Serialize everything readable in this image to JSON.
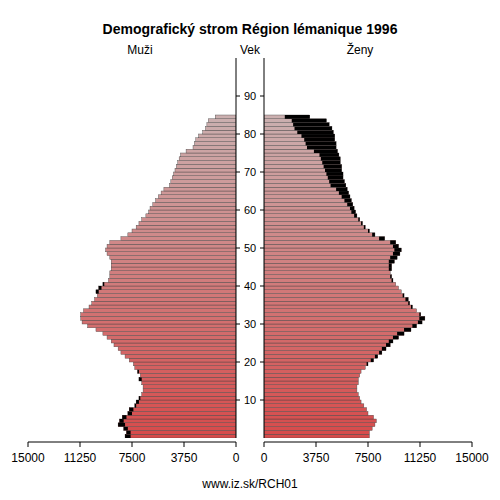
{
  "chart_data": {
    "type": "bar",
    "orientation": "horizontal",
    "title": "Demografický strom Région lémanique 1996",
    "y_label": "Vek",
    "footer": "www.iz.sk/RCH01",
    "categories": [
      0,
      1,
      2,
      3,
      4,
      5,
      6,
      7,
      8,
      9,
      10,
      11,
      12,
      13,
      14,
      15,
      16,
      17,
      18,
      19,
      20,
      21,
      22,
      23,
      24,
      25,
      26,
      27,
      28,
      29,
      30,
      31,
      32,
      33,
      34,
      35,
      36,
      37,
      38,
      39,
      40,
      41,
      42,
      43,
      44,
      45,
      46,
      47,
      48,
      49,
      50,
      51,
      52,
      53,
      54,
      55,
      56,
      57,
      58,
      59,
      60,
      61,
      62,
      63,
      64,
      65,
      66,
      67,
      68,
      69,
      70,
      71,
      72,
      73,
      74,
      75,
      76,
      77,
      78,
      79,
      80,
      81,
      82,
      83,
      84
    ],
    "series": [
      {
        "name": "Muži",
        "values": [
          8000,
          7900,
          8100,
          8500,
          8400,
          8200,
          7800,
          7700,
          7300,
          7200,
          7000,
          6800,
          6700,
          6700,
          6800,
          7000,
          6900,
          7100,
          7300,
          7400,
          7700,
          8000,
          8300,
          8500,
          8800,
          9000,
          9300,
          9600,
          10100,
          10700,
          11100,
          11200,
          11200,
          11000,
          10600,
          10400,
          10200,
          10000,
          10100,
          9900,
          9600,
          9200,
          9100,
          9100,
          9000,
          9000,
          9000,
          9100,
          9300,
          9400,
          9300,
          9100,
          8300,
          7800,
          7500,
          7200,
          7000,
          6800,
          6500,
          6300,
          6200,
          6000,
          5800,
          5600,
          5400,
          5200,
          4800,
          4700,
          4600,
          4500,
          4400,
          4300,
          4200,
          4100,
          4000,
          3600,
          3100,
          3000,
          2900,
          2700,
          2400,
          2200,
          2100,
          2000,
          1500
        ]
      },
      {
        "name": "Ženy",
        "values": [
          7600,
          7600,
          7800,
          8000,
          8100,
          7900,
          7500,
          7400,
          7200,
          7000,
          6900,
          6800,
          6700,
          6700,
          6800,
          6800,
          6900,
          7000,
          7300,
          7500,
          7900,
          8200,
          8500,
          8800,
          9100,
          9300,
          9700,
          10100,
          10600,
          11000,
          11400,
          11600,
          11300,
          11000,
          10700,
          10500,
          10400,
          10100,
          9900,
          9700,
          9500,
          9300,
          9200,
          9100,
          9200,
          9200,
          9400,
          9600,
          9800,
          9900,
          9700,
          9500,
          8700,
          8000,
          7600,
          7300,
          7100,
          6900,
          6700,
          6600,
          6500,
          6400,
          6300,
          6200,
          6100,
          6000,
          5900,
          5800,
          5700,
          5700,
          5600,
          5600,
          5500,
          5500,
          5400,
          5300,
          5200,
          5200,
          5100,
          5100,
          5000,
          4900,
          4700,
          4500,
          3300
        ]
      }
    ],
    "xlim": [
      0,
      15000
    ],
    "xticks": [
      0,
      3750,
      7500,
      11250,
      15000
    ],
    "ylim": [
      0,
      100
    ],
    "yticks": [
      10,
      20,
      30,
      40,
      50,
      60,
      70,
      80,
      90
    ]
  }
}
